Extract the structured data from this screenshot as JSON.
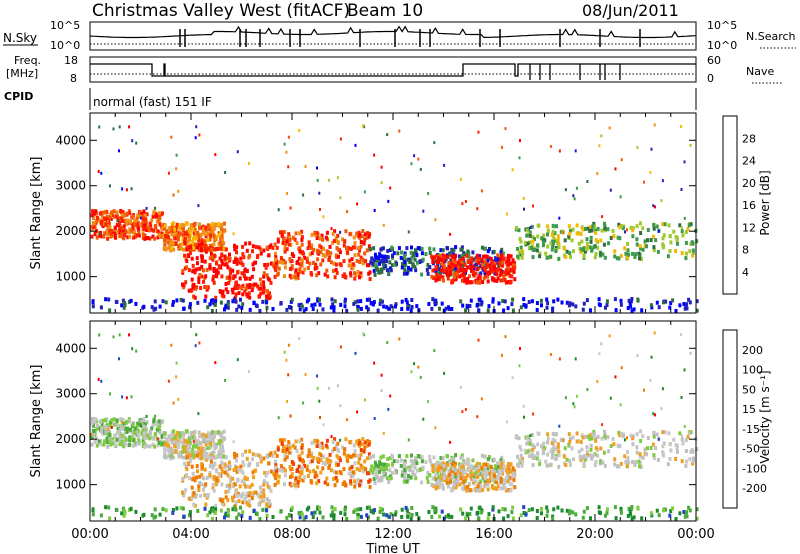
{
  "header": {
    "title": "Christmas Valley West (fitACF)",
    "beam": "Beam 10",
    "date": "08/Jun/2011"
  },
  "strips": {
    "nsky_label": "N.Sky",
    "nsky_ticks": [
      "10^5",
      "10^0"
    ],
    "nsearch_label": "N.Search",
    "nsearch_ticks": [
      "10^5",
      "10^0"
    ],
    "freq_label_1": "Freq.",
    "freq_label_2": "[MHz]",
    "freq_ticks": [
      "18",
      "8"
    ],
    "nave_label": "Nave",
    "nave_ticks": [
      "60",
      "0"
    ],
    "cpid_label": "CPID",
    "cpid_text": "normal (fast) 151 IF"
  },
  "colors": {
    "power_scale": [
      "#0000ff",
      "#2222bb",
      "#2e6e3e",
      "#3c9a4c",
      "#a2c830",
      "#f6b800",
      "#f09018",
      "#f05a08",
      "#ff2000",
      "#ff0000"
    ],
    "velocity_scale": [
      "#2244cc",
      "#1a8a2e",
      "#4aaa3a",
      "#80cc40",
      "#c0c0c0",
      "#c8c8c8",
      "#f0a020",
      "#f07a00",
      "#f04000",
      "#ff0000"
    ]
  },
  "chart_data": [
    {
      "type": "heatmap",
      "name_hint": "power",
      "xlabel": "",
      "ylabel": "Slant Range [km]",
      "x_ticks": [
        "00:00",
        "04:00",
        "08:00",
        "12:00",
        "16:00",
        "20:00",
        "00:00"
      ],
      "y_ticks": [
        "1000",
        "2000",
        "3000",
        "4000"
      ],
      "ylim": [
        200,
        4600
      ],
      "colorbar": {
        "label": "Power [dB]",
        "ticks": [
          "28",
          "24",
          "20",
          "16",
          "12",
          "8",
          "4"
        ]
      }
    },
    {
      "type": "heatmap",
      "name_hint": "velocity",
      "xlabel": "Time UT",
      "ylabel": "Slant Range [km]",
      "x_ticks": [
        "00:00",
        "04:00",
        "08:00",
        "12:00",
        "16:00",
        "20:00",
        "00:00"
      ],
      "y_ticks": [
        "1000",
        "2000",
        "3000",
        "4000"
      ],
      "ylim": [
        200,
        4600
      ],
      "colorbar": {
        "label": "Velocity [m s⁻¹]",
        "ticks": [
          "200",
          "100",
          "50",
          "15",
          "-15",
          "-50",
          "-100",
          "-200"
        ]
      }
    }
  ]
}
